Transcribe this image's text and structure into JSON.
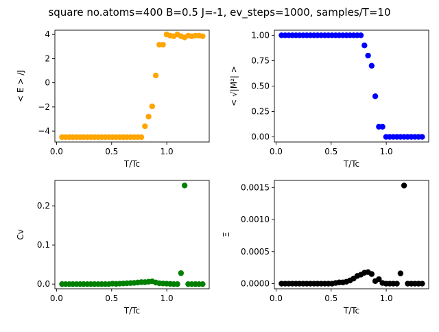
{
  "figure": {
    "title": "square no.atoms=400  B=0.5 J=-1, ev_steps=1000, samples/T=10"
  },
  "chart_data": [
    {
      "id": "energy",
      "type": "scatter",
      "xlabel": "T/Tc",
      "ylabel": "< E > /J",
      "color": "#ffa500",
      "xlim": [
        -0.015,
        1.385
      ],
      "ylim": [
        -4.9,
        4.35
      ],
      "xticks": [
        0.0,
        0.5,
        1.0
      ],
      "xtick_labels": [
        "0.0",
        "0.5",
        "1.0"
      ],
      "yticks": [
        -4,
        -2,
        0,
        2,
        4
      ],
      "ytick_labels": [
        "−4",
        "−2",
        "0",
        "2",
        "4"
      ],
      "x": [
        0.05,
        0.0827,
        0.1154,
        0.1481,
        0.1808,
        0.2135,
        0.2462,
        0.2789,
        0.3116,
        0.3443,
        0.377,
        0.4097,
        0.4424,
        0.4751,
        0.5078,
        0.5405,
        0.5732,
        0.6059,
        0.6386,
        0.6713,
        0.704,
        0.7367,
        0.7694,
        0.8021,
        0.8348,
        0.8675,
        0.9002,
        0.9329,
        0.9656,
        0.9983,
        1.031,
        1.0637,
        1.0964,
        1.1291,
        1.1618,
        1.1945,
        1.2272,
        1.2599,
        1.2926,
        1.3253
      ],
      "y": [
        -4.5,
        -4.5,
        -4.5,
        -4.5,
        -4.5,
        -4.5,
        -4.5,
        -4.5,
        -4.5,
        -4.5,
        -4.5,
        -4.5,
        -4.5,
        -4.5,
        -4.5,
        -4.5,
        -4.5,
        -4.5,
        -4.5,
        -4.5,
        -4.5,
        -4.5,
        -4.5,
        -3.6,
        -2.8,
        -1.95,
        0.6,
        3.15,
        3.15,
        4.0,
        3.9,
        3.85,
        4.0,
        3.85,
        3.75,
        3.9,
        3.85,
        3.9,
        3.9,
        3.85
      ]
    },
    {
      "id": "magnetization",
      "type": "scatter",
      "xlabel": "T/Tc",
      "ylabel": "< √|M²| >",
      "color": "#0000ff",
      "xlim": [
        -0.015,
        1.385
      ],
      "ylim": [
        -0.05,
        1.05
      ],
      "xticks": [
        0.0,
        0.5,
        1.0
      ],
      "xtick_labels": [
        "0.0",
        "0.5",
        "1.0"
      ],
      "yticks": [
        0.0,
        0.25,
        0.5,
        0.75,
        1.0
      ],
      "ytick_labels": [
        "0.00",
        "0.25",
        "0.50",
        "0.75",
        "1.00"
      ],
      "x": [
        0.05,
        0.0827,
        0.1154,
        0.1481,
        0.1808,
        0.2135,
        0.2462,
        0.2789,
        0.3116,
        0.3443,
        0.377,
        0.4097,
        0.4424,
        0.4751,
        0.5078,
        0.5405,
        0.5732,
        0.6059,
        0.6386,
        0.6713,
        0.704,
        0.7367,
        0.7694,
        0.8021,
        0.8348,
        0.8675,
        0.9002,
        0.9329,
        0.9656,
        0.9983,
        1.031,
        1.0637,
        1.0964,
        1.1291,
        1.1618,
        1.1945,
        1.2272,
        1.2599,
        1.2926,
        1.3253
      ],
      "y": [
        1.0,
        1.0,
        1.0,
        1.0,
        1.0,
        1.0,
        1.0,
        1.0,
        1.0,
        1.0,
        1.0,
        1.0,
        1.0,
        1.0,
        1.0,
        1.0,
        1.0,
        1.0,
        1.0,
        1.0,
        1.0,
        1.0,
        1.0,
        0.9,
        0.8,
        0.7,
        0.4,
        0.1,
        0.1,
        0.0,
        0.0,
        0.0,
        0.0,
        0.0,
        0.0,
        0.0,
        0.0,
        0.0,
        0.0,
        0.0
      ]
    },
    {
      "id": "heat-capacity",
      "type": "scatter",
      "xlabel": "T/Tc",
      "ylabel": "Cv",
      "color": "#008000",
      "xlim": [
        -0.015,
        1.385
      ],
      "ylim": [
        -0.012,
        0.265
      ],
      "xticks": [
        0.0,
        0.5,
        1.0
      ],
      "xtick_labels": [
        "0.0",
        "0.5",
        "1.0"
      ],
      "yticks": [
        0.0,
        0.1,
        0.2
      ],
      "ytick_labels": [
        "0.0",
        "0.1",
        "0.2"
      ],
      "x": [
        0.05,
        0.0827,
        0.1154,
        0.1481,
        0.1808,
        0.2135,
        0.2462,
        0.2789,
        0.3116,
        0.3443,
        0.377,
        0.4097,
        0.4424,
        0.4751,
        0.5078,
        0.5405,
        0.5732,
        0.6059,
        0.6386,
        0.6713,
        0.704,
        0.7367,
        0.7694,
        0.8021,
        0.8348,
        0.8675,
        0.9002,
        0.9329,
        0.9656,
        0.9983,
        1.031,
        1.0637,
        1.0964,
        1.1291,
        1.1618,
        1.1945,
        1.2272,
        1.2599,
        1.2926,
        1.3253
      ],
      "y": [
        0.0,
        0.0,
        0.0,
        0.0,
        0.0,
        0.0,
        0.0,
        0.0,
        0.0,
        0.0,
        0.0,
        0.0,
        0.0,
        0.0,
        0.001,
        0.0005,
        0.001,
        0.0015,
        0.002,
        0.0025,
        0.003,
        0.004,
        0.005,
        0.005,
        0.006,
        0.007,
        0.004,
        0.002,
        0.0015,
        0.001,
        0.0005,
        0.0,
        0.0,
        0.028,
        0.252,
        0.0,
        0.0,
        0.0,
        0.0,
        0.0
      ]
    },
    {
      "id": "susceptibility",
      "type": "scatter",
      "xlabel": "T/Tc",
      "ylabel": "Ξ",
      "color": "#000000",
      "xlim": [
        -0.015,
        1.385
      ],
      "ylim": [
        -8e-05,
        0.00161
      ],
      "xticks": [
        0.0,
        0.5,
        1.0
      ],
      "xtick_labels": [
        "0.0",
        "0.5",
        "1.0"
      ],
      "yticks": [
        0.0,
        0.0005,
        0.001,
        0.0015
      ],
      "ytick_labels": [
        "0.0000",
        "0.0005",
        "0.0010",
        "0.0015"
      ],
      "x": [
        0.05,
        0.0827,
        0.1154,
        0.1481,
        0.1808,
        0.2135,
        0.2462,
        0.2789,
        0.3116,
        0.3443,
        0.377,
        0.4097,
        0.4424,
        0.4751,
        0.5078,
        0.5405,
        0.5732,
        0.6059,
        0.6386,
        0.6713,
        0.704,
        0.7367,
        0.7694,
        0.8021,
        0.8348,
        0.8675,
        0.9002,
        0.9329,
        0.9656,
        0.9983,
        1.031,
        1.0637,
        1.0964,
        1.1291,
        1.1618,
        1.1945,
        1.2272,
        1.2599,
        1.2926,
        1.3253
      ],
      "y": [
        0.0,
        0.0,
        0.0,
        0.0,
        0.0,
        0.0,
        0.0,
        0.0,
        0.0,
        0.0,
        0.0,
        0.0,
        0.0,
        0.0,
        0.0,
        1e-05,
        2e-05,
        2e-05,
        3e-05,
        5e-05,
        8e-05,
        0.00012,
        0.00014,
        0.00017,
        0.00018,
        0.00015,
        4e-05,
        7e-05,
        1e-05,
        0.0,
        0.0,
        0.0,
        0.0,
        0.00016,
        0.00153,
        0.0,
        0.0,
        0.0,
        0.0,
        0.0
      ]
    }
  ]
}
